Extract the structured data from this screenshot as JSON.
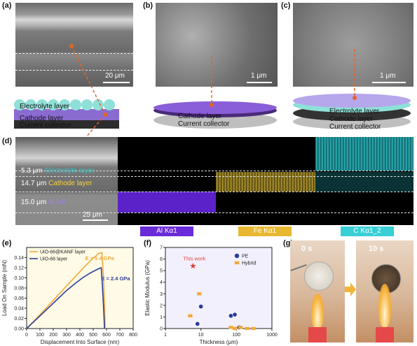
{
  "panel_labels": {
    "a": "(a)",
    "b": "(b)",
    "c": "(c)",
    "d": "(d)",
    "e": "(e)",
    "f": "(f)",
    "g": "(g)"
  },
  "scale_bars": {
    "a": "20 μm",
    "b": "1 μm",
    "c": "1 μm",
    "d": "25 μm"
  },
  "layers": {
    "a_electrolyte": "Electrolyte layer",
    "a_cathode": "Cathode layer",
    "a_collector": "Current collector",
    "b_cathode": "Cathode layer",
    "b_collector": "Current collector",
    "c_electrolyte": "Electrolyte layer",
    "c_cathode": "Cathode layer",
    "c_collector": "Current collector"
  },
  "panel_d": {
    "thick1": "5.3 μm",
    "thick1_label": "Electrolyte layer",
    "thick2": "14.7 μm",
    "thick2_label": "Cathode layer",
    "thick3": "15.0 μm",
    "thick3_label": "Al foil",
    "maps": [
      "Al Kα1",
      "Fe Kα1",
      "C Kα1_2"
    ],
    "map_colors": [
      "#6a2cd8",
      "#e8b830",
      "#38d0d6"
    ]
  },
  "chart_data": [
    {
      "type": "line",
      "xlabel": "Displacement Into Surface (nm)",
      "ylabel": "Load On Sample (mN)",
      "xlim": [
        0,
        800
      ],
      "ylim": [
        0,
        0.16
      ],
      "xticks": [
        0,
        100,
        200,
        300,
        400,
        500,
        600,
        700,
        800
      ],
      "yticks": [
        0.0,
        0.02,
        0.04,
        0.06,
        0.08,
        0.1,
        0.12,
        0.14
      ],
      "series": [
        {
          "name": "UiO-66@KANF layer",
          "color": "#f2a93b",
          "x": [
            0,
            60,
            120,
            180,
            240,
            300,
            360,
            420,
            480,
            540,
            565,
            575,
            585,
            590
          ],
          "y": [
            0,
            0.016,
            0.033,
            0.05,
            0.067,
            0.084,
            0.101,
            0.118,
            0.134,
            0.148,
            0.15,
            0.11,
            0.05,
            0
          ]
        },
        {
          "name": "UiO-66 layer",
          "color": "#2b3a9e",
          "x": [
            0,
            60,
            120,
            180,
            240,
            300,
            360,
            420,
            480,
            540,
            560,
            570,
            580,
            585
          ],
          "y": [
            0,
            0.015,
            0.03,
            0.045,
            0.06,
            0.075,
            0.088,
            0.1,
            0.11,
            0.118,
            0.12,
            0.08,
            0.03,
            0
          ]
        }
      ],
      "annotations": [
        "E = 5.4 GPa",
        "E = 2.4 GPa"
      ]
    },
    {
      "type": "scatter",
      "xlabel": "Thickness (μm)",
      "ylabel": "Elastic Modulus (GPa)",
      "xscale": "log",
      "xlim": [
        1,
        1000
      ],
      "ylim": [
        0,
        7
      ],
      "xticks": [
        1,
        10,
        100,
        1000
      ],
      "yticks": [
        0,
        1,
        2,
        3,
        4,
        5,
        6,
        7
      ],
      "annotation": "This work",
      "this_work": {
        "x": 6,
        "y": 5.4
      },
      "series": [
        {
          "name": "PE",
          "color": "#2b3a9e",
          "x": [
            8,
            10,
            70,
            90,
            120
          ],
          "y": [
            0.4,
            1.9,
            1.1,
            1.2,
            0.1
          ]
        },
        {
          "name": "Hybrid",
          "color": "#f2a93b",
          "x": [
            5,
            9,
            70,
            90,
            130,
            200,
            300
          ],
          "y": [
            1.1,
            3.0,
            0.1,
            0.0,
            0.1,
            0.0,
            0.0
          ]
        }
      ]
    }
  ],
  "panel_g": {
    "t0": "0 s",
    "t1": "10 s"
  }
}
